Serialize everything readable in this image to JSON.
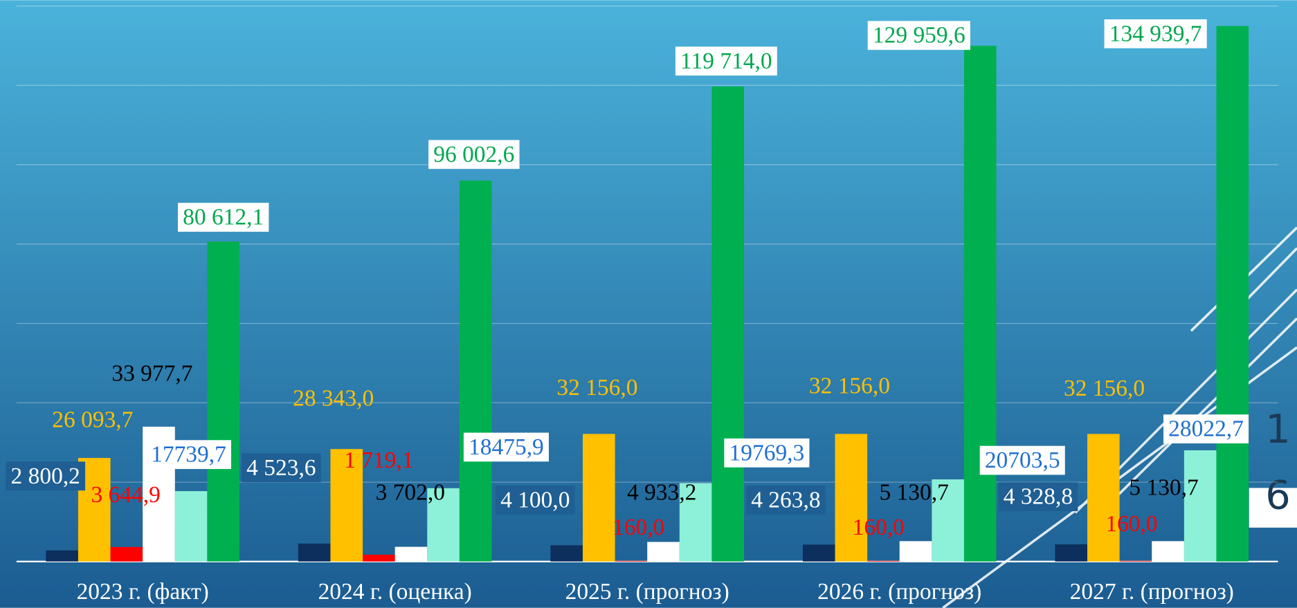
{
  "chart_data": {
    "type": "bar",
    "categories": [
      "2023 г. (факт)",
      "2024 г. (оценка)",
      "2025 г. (прогноз)",
      "2026 г. (прогноз)",
      "2027 г. (прогноз)"
    ],
    "series": [
      {
        "color": "#0d2f5e",
        "values": [
          2800.2,
          4523.6,
          4100.0,
          4263.8,
          4328.8
        ],
        "value_labels": [
          "2 800,2",
          "4 523,6",
          "4 100,0",
          "4 263,8",
          "4 328,8"
        ]
      },
      {
        "color": "#ffc000",
        "values": [
          26093.7,
          28343.0,
          32156.0,
          32156.0,
          32156.0
        ],
        "value_labels": [
          "26 093,7",
          "28 343,0",
          "32 156,0",
          "32 156,0",
          "32 156,0"
        ]
      },
      {
        "color": "#ff0000",
        "values": [
          3644.9,
          1719.1,
          160.0,
          160.0,
          160.0
        ],
        "value_labels": [
          "3 644,9",
          "1 719,1",
          "160,0",
          "160,0",
          "160,0"
        ]
      },
      {
        "color": "#ffffff",
        "values": [
          33977.7,
          3702.0,
          4933.2,
          5130.7,
          5130.7
        ],
        "value_labels": [
          "33 977,7",
          "3 702,0",
          "4 933,2",
          "5 130,7",
          "5 130,7"
        ]
      },
      {
        "color": "#8df0d8",
        "values": [
          17739.7,
          18475.9,
          19769.3,
          20703.5,
          28022.7
        ],
        "value_labels": [
          "17739,7",
          "18475,9",
          "19769,3",
          "20703,5",
          "28022,7"
        ]
      },
      {
        "color": "#00b050",
        "values": [
          80612.1,
          96002.6,
          119714.0,
          129959.6,
          134939.7
        ],
        "value_labels": [
          "80 612,1",
          "96 002,6",
          "119 714,0",
          "129 959,6",
          "134 939,7"
        ]
      }
    ],
    "ylim": [
      0,
      140000
    ],
    "yticks": [
      0,
      20000,
      40000,
      60000,
      80000,
      100000,
      120000,
      140000
    ],
    "grid": true
  },
  "slide_number_lines": [
    "1",
    "6"
  ]
}
